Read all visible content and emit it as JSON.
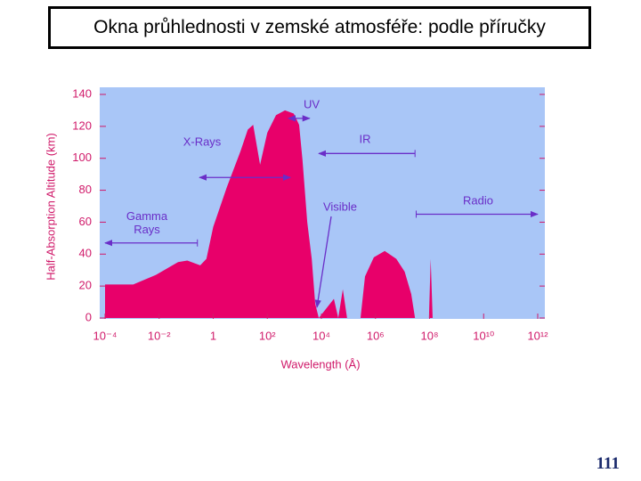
{
  "header": {
    "title": "Okna průhlednosti v zemské atmosféře: podle příručky"
  },
  "footer": {
    "page_number": "111"
  },
  "chart_data": {
    "type": "area",
    "x_label": "Wavelength (Å)",
    "y_label": "Half-Absorption Altitude (km)",
    "x_scale": "log",
    "xlim": [
      0.0001,
      1000000000000
    ],
    "xticks": [
      {
        "value": 0.0001,
        "label": "10⁻⁴"
      },
      {
        "value": 0.01,
        "label": "10⁻²"
      },
      1,
      {
        "value": 100,
        "label": "10²"
      },
      {
        "value": 10000,
        "label": "10⁴"
      },
      {
        "value": 1000000,
        "label": "10⁶"
      },
      {
        "value": 100000000,
        "label": "10⁸"
      },
      {
        "value": 10000000000,
        "label": "10¹⁰"
      },
      {
        "value": 1000000000000,
        "label": "10¹²"
      }
    ],
    "ylim": [
      0,
      140
    ],
    "yticks": [
      0,
      20,
      40,
      60,
      80,
      100,
      120,
      140
    ],
    "color": "#e8006a",
    "plot_background": "#a9c6f7",
    "annotation_color": "#6a2ec8",
    "x": [
      0.0001,
      0.0011,
      0.0076,
      0.05,
      0.11,
      0.33,
      0.56,
      1,
      3.2,
      10,
      19,
      30,
      54,
      100,
      210,
      450,
      950,
      1500,
      2000,
      3000,
      4400,
      5900,
      8000,
      29000,
      42000,
      62000,
      89000,
      280000,
      410000,
      870000,
      2200000,
      5900000,
      12000000,
      21000000,
      29000000,
      95000000,
      110000000,
      130000000,
      1000000000000
    ],
    "values": [
      21,
      21,
      27,
      35,
      36,
      33,
      37,
      57,
      82,
      104,
      118,
      121,
      96,
      116,
      127,
      130,
      128,
      121,
      99,
      60,
      37,
      9,
      0,
      12,
      0,
      18,
      0,
      0,
      26,
      38,
      42,
      37,
      29,
      15,
      0,
      0,
      37,
      0,
      0
    ],
    "annotations": [
      {
        "label": "Gamma Rays",
        "x": [
          0.0001,
          0.26
        ],
        "y": 47
      },
      {
        "label": "X-Rays",
        "x": [
          0.31,
          710
        ],
        "y": 88
      },
      {
        "label": "UV",
        "x": [
          600,
          3700
        ],
        "y": 125
      },
      {
        "label": "IR",
        "x": [
          8000,
          29000000
        ],
        "y": 103
      },
      {
        "label": "Visible"
      },
      {
        "label": "Radio",
        "x": [
          32000000,
          1000000000000
        ],
        "y": 65
      }
    ]
  }
}
